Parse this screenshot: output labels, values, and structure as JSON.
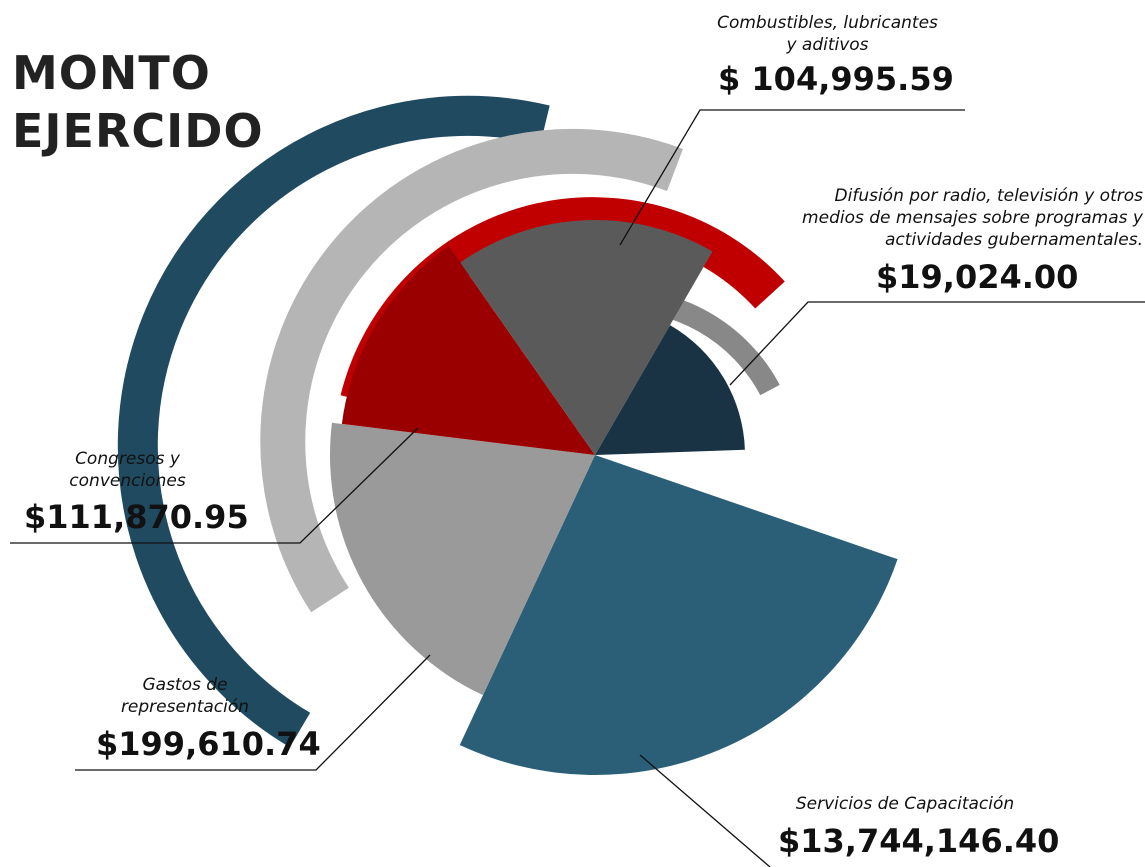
{
  "chart_data": {
    "type": "pie",
    "title": "MONTO EJERCIDO",
    "categories": [
      "Combustibles, lubricantes y aditivos",
      "Difusión por radio, televisión y otros medios de mensajes sobre programas y actividades gubernamentales.",
      "Congresos y convenciones",
      "Gastos de representación",
      "Servicios de Capacitación"
    ],
    "values": [
      104995.59,
      19024.0,
      111870.95,
      199610.74,
      13744146.4
    ],
    "value_labels": [
      "$ 104,995.59",
      "$19,024.00",
      "$111,870.95",
      "$199,610.74",
      "$13,744,146.40"
    ],
    "colors": [
      "#5a5a5a",
      "#1a3344",
      "#9a0000",
      "#9a9a9a",
      "#2b5f78"
    ]
  }
}
